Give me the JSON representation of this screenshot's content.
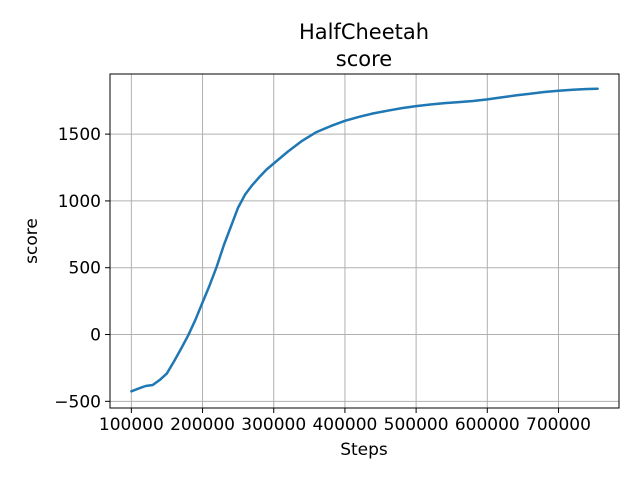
{
  "chart_data": {
    "type": "line",
    "title": "HalfCheetah",
    "subtitle": "score",
    "xlabel": "Steps",
    "ylabel": "score",
    "xlim": [
      70000,
      785000
    ],
    "ylim": [
      -550,
      1950
    ],
    "xticks": [
      100000,
      200000,
      300000,
      400000,
      500000,
      600000,
      700000
    ],
    "yticks": [
      -500,
      0,
      500,
      1000,
      1500
    ],
    "grid": true,
    "series": [
      {
        "color": "#1f77b4",
        "x": [
          100000,
          110000,
          120000,
          130000,
          140000,
          150000,
          160000,
          170000,
          180000,
          190000,
          200000,
          210000,
          220000,
          230000,
          240000,
          250000,
          260000,
          270000,
          280000,
          290000,
          300000,
          320000,
          340000,
          360000,
          380000,
          400000,
          420000,
          440000,
          460000,
          480000,
          500000,
          520000,
          540000,
          560000,
          580000,
          600000,
          620000,
          640000,
          660000,
          680000,
          700000,
          720000,
          740000,
          755000
        ],
        "y": [
          -425,
          -405,
          -385,
          -378,
          -340,
          -290,
          -200,
          -105,
          -5,
          110,
          240,
          370,
          510,
          670,
          810,
          950,
          1050,
          1120,
          1180,
          1235,
          1280,
          1370,
          1450,
          1515,
          1560,
          1600,
          1630,
          1655,
          1675,
          1695,
          1710,
          1722,
          1732,
          1740,
          1748,
          1760,
          1775,
          1790,
          1802,
          1815,
          1825,
          1832,
          1838,
          1840
        ]
      }
    ]
  }
}
